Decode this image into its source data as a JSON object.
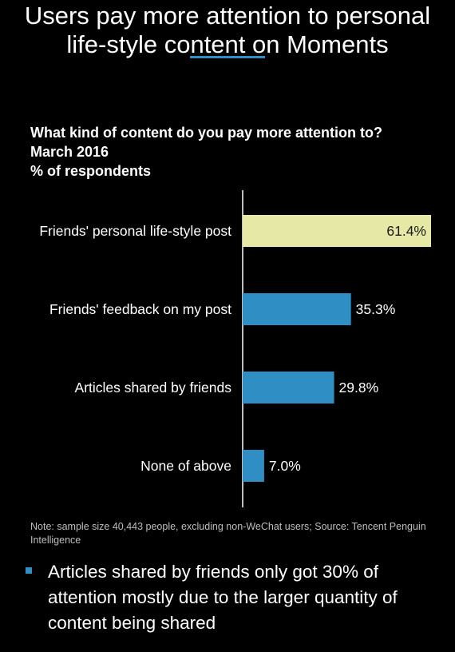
{
  "title": {
    "line1": "Users pay more attention to personal",
    "line2": "life-style content on Moments"
  },
  "colors": {
    "background": "#000000",
    "highlight_bar": "#e6e8a6",
    "bar": "#2f8fc4",
    "accent": "#2f8fc4"
  },
  "chart_data": {
    "type": "bar",
    "orientation": "horizontal",
    "title": "What kind of content do you pay more attention to?",
    "subtitle": "March 2016",
    "unit_label": "% of respondents",
    "categories": [
      "Friends' personal life-style post",
      "Friends' feedback on my post",
      "Articles shared by friends",
      "None of above"
    ],
    "values": [
      61.4,
      35.3,
      29.8,
      7.0
    ],
    "value_labels": [
      "61.4%",
      "35.3%",
      "29.8%",
      "7.0%"
    ],
    "highlighted_index": 0,
    "xlim": [
      0,
      61.4
    ],
    "grid": false
  },
  "note": "Note: sample size 40,443 people, excluding non-WeChat users;  Source: Tencent Penguin Intelligence",
  "bullet": {
    "text": "Articles shared by friends only got 30% of attention mostly due to the larger quantity of content being shared"
  }
}
